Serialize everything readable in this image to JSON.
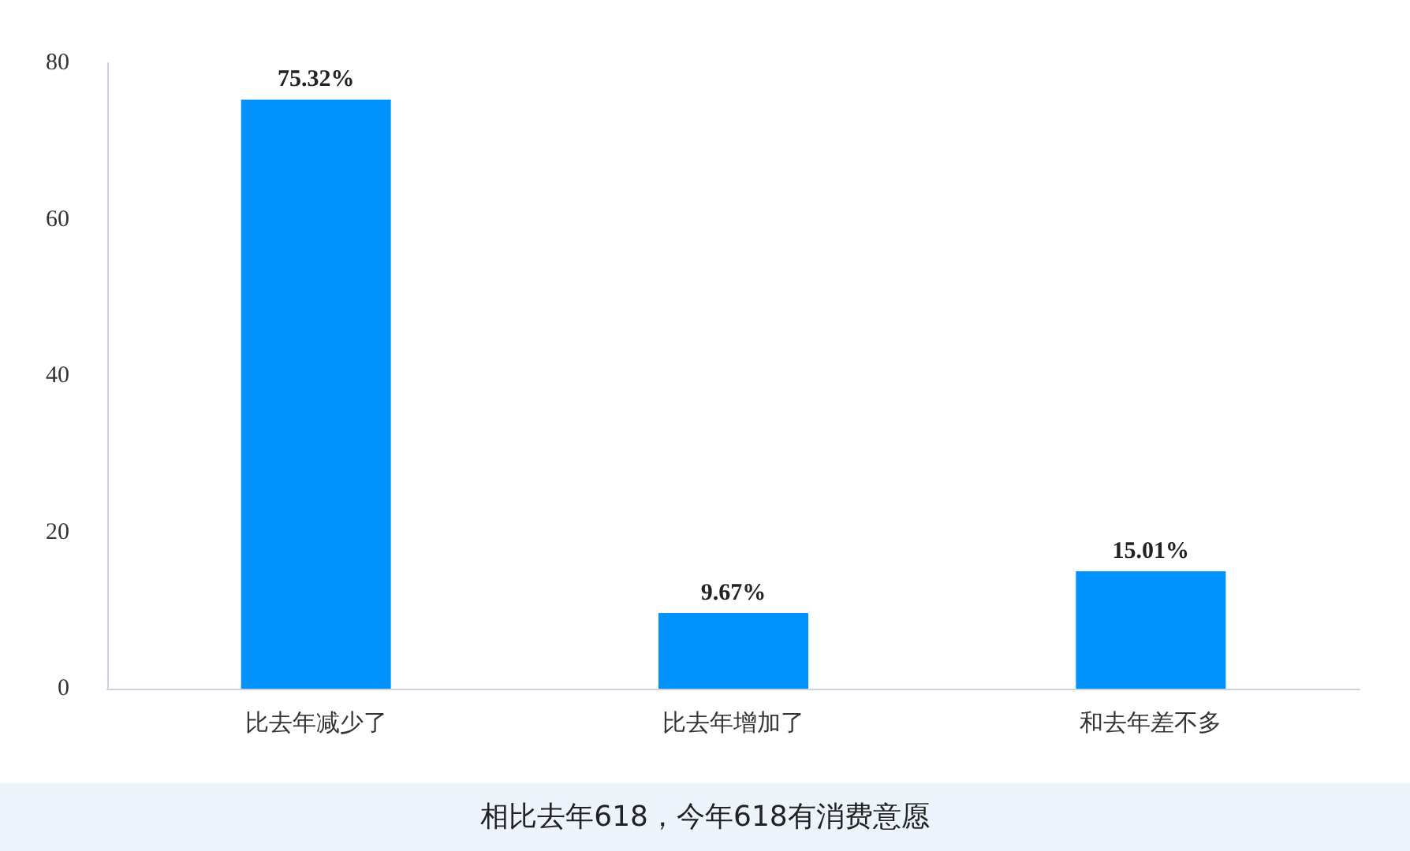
{
  "chart_data": {
    "type": "bar",
    "categories": [
      "比去年减少了",
      "比去年增加了",
      "和去年差不多"
    ],
    "values": [
      75.32,
      9.67,
      15.01
    ],
    "value_labels": [
      "75.32%",
      "9.67%",
      "15.01%"
    ],
    "color": "#0292fe",
    "ylim": [
      0,
      80
    ],
    "yticks": [
      0,
      20,
      40,
      60,
      80
    ],
    "grid": false,
    "annotations": [
      "相比去年618，今年618有消费意愿"
    ]
  }
}
